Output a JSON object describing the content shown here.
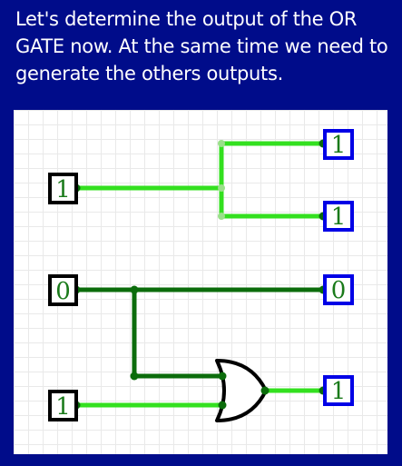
{
  "instruction": "Let's determine the output of the OR GATE now. At the same time we need to generate the others outputs.",
  "inputs": [
    {
      "id": "in1",
      "value": "1"
    },
    {
      "id": "in2",
      "value": "0"
    },
    {
      "id": "in3",
      "value": "1"
    }
  ],
  "outputs": [
    {
      "id": "out1",
      "value": "1"
    },
    {
      "id": "out2",
      "value": "1"
    },
    {
      "id": "out3",
      "value": "0"
    },
    {
      "id": "out4",
      "value": "1"
    }
  ],
  "gate": {
    "type": "OR"
  },
  "colors": {
    "background": "#000c8a",
    "wire_high": "#33e01f",
    "wire_low": "#0b6c0b",
    "input_border": "#000000",
    "output_border": "#0000e6",
    "pin_value_text": "#1a7a1a"
  }
}
